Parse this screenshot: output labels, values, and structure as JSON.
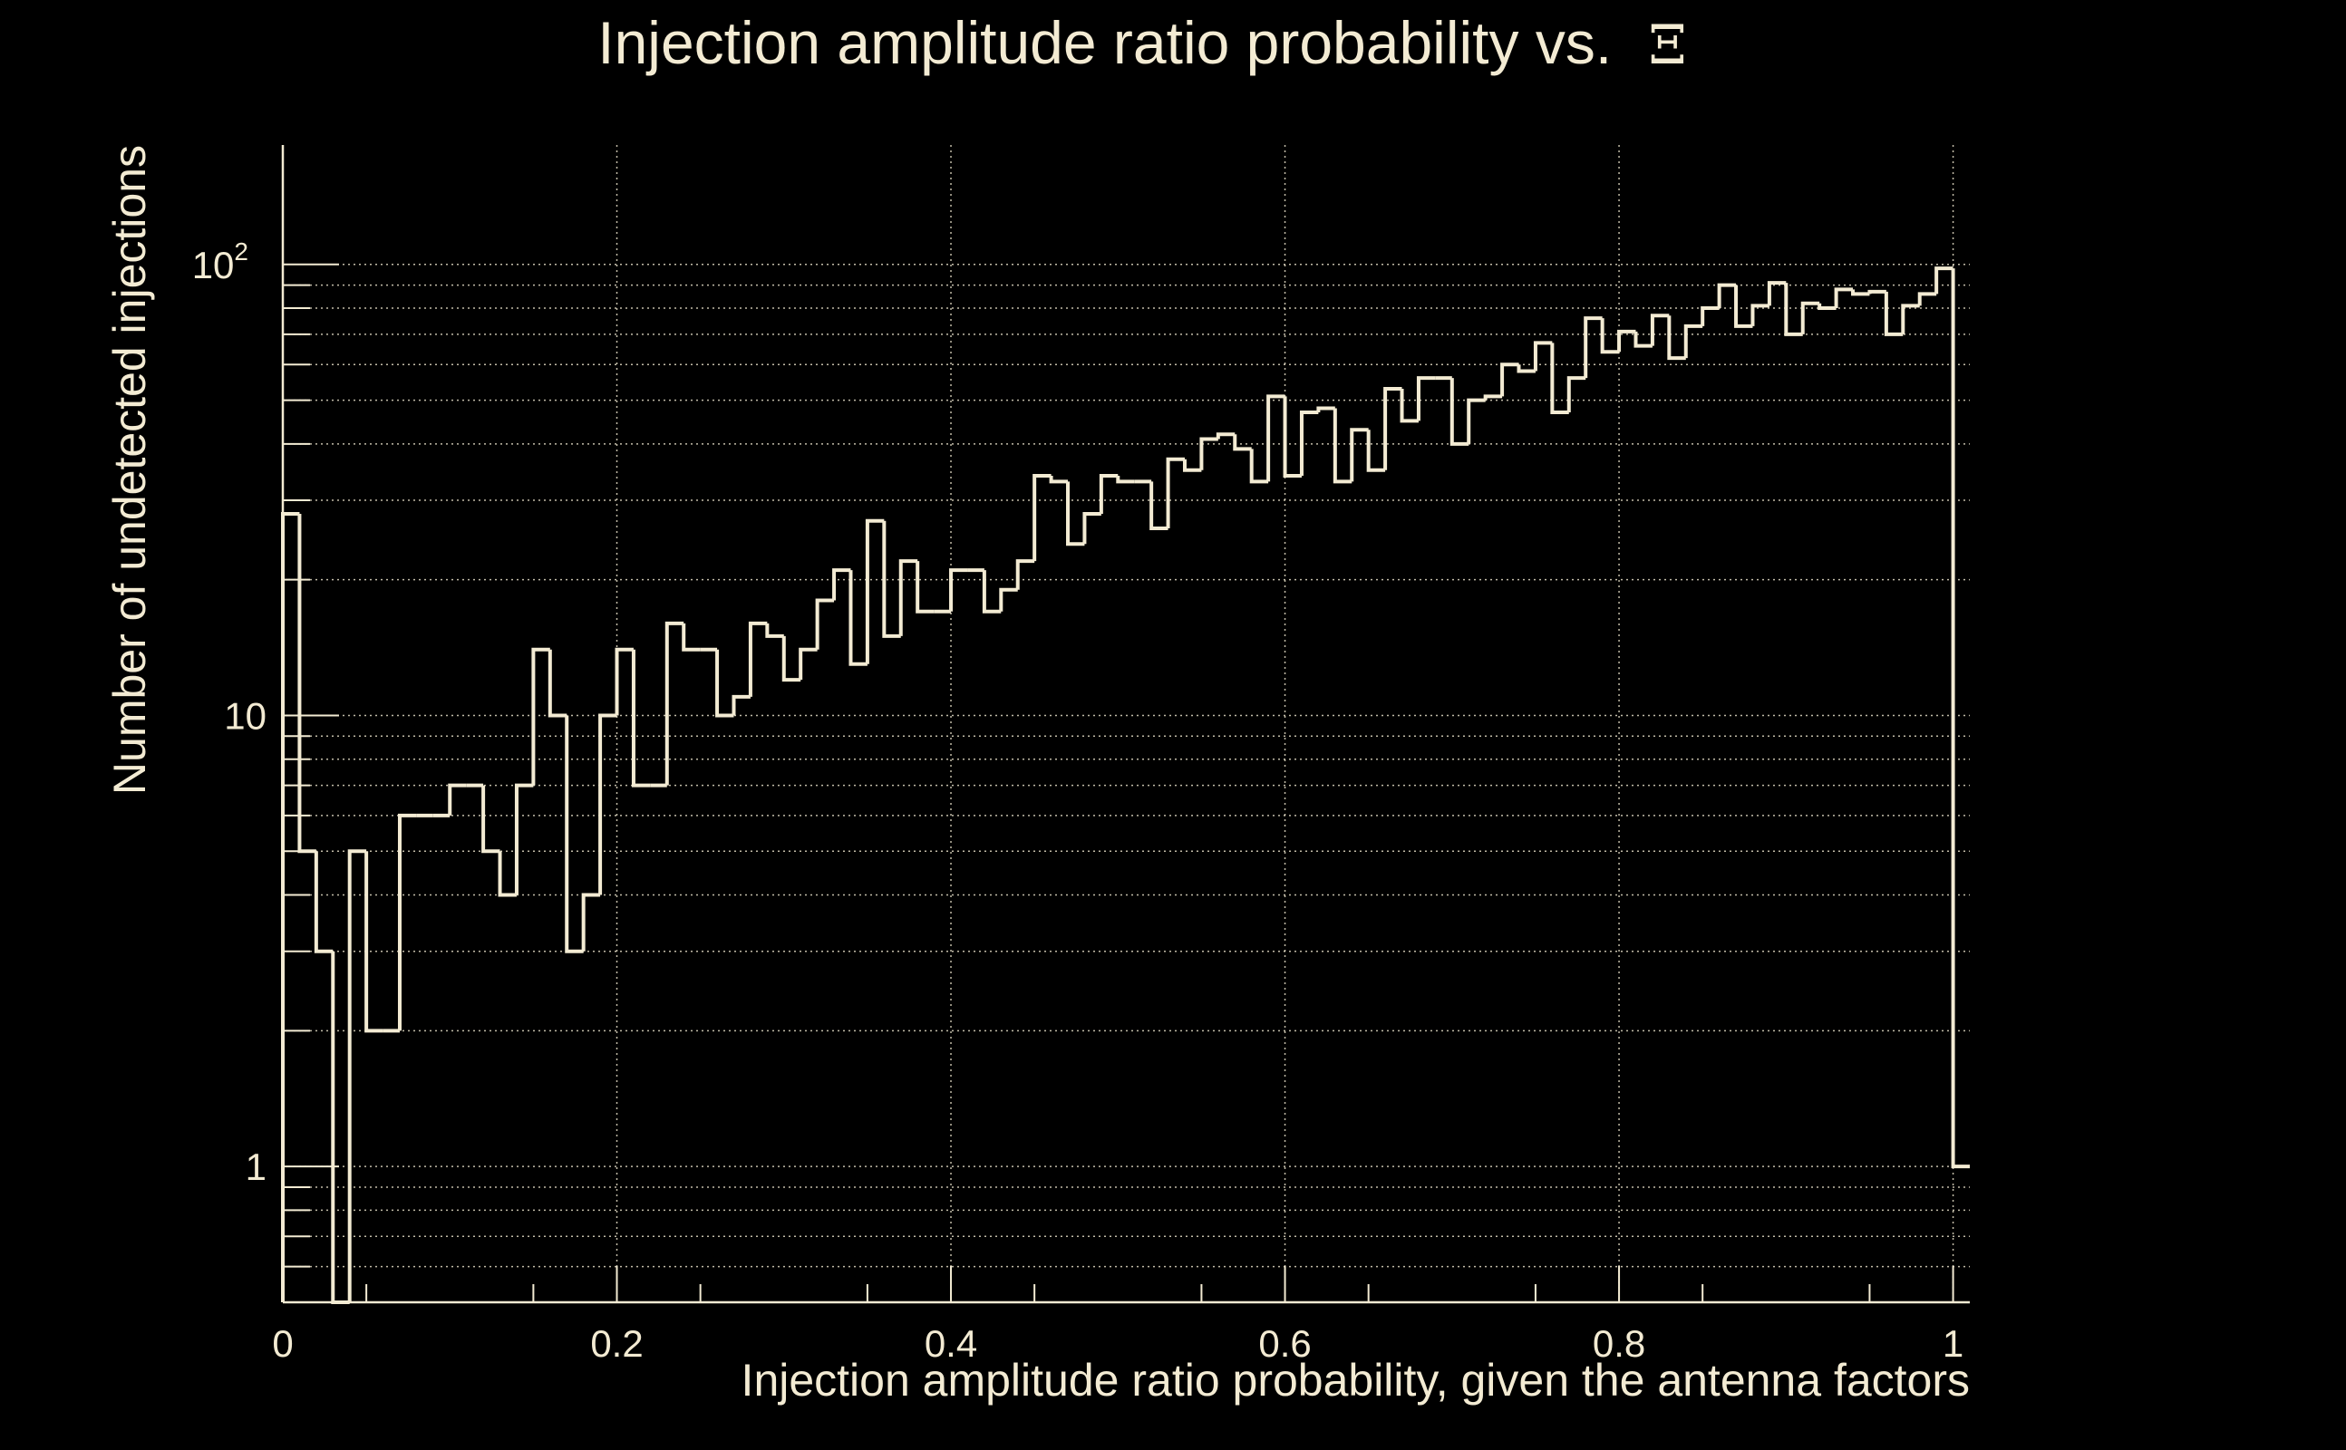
{
  "chart_data": {
    "type": "bar",
    "histogram": true,
    "title": "Injection amplitude ratio probability vs.",
    "title_symbol": "Ξ",
    "xlabel": "Injection amplitude ratio probability, given the antenna factors",
    "ylabel": "Number of undetected injections",
    "xlim": [
      0,
      1.01
    ],
    "ylim": [
      0.5,
      184
    ],
    "yscale": "log",
    "grid": true,
    "bin_width": 0.01,
    "x_ticks": [
      {
        "value": 0,
        "label": "0"
      },
      {
        "value": 0.2,
        "label": "0.2"
      },
      {
        "value": 0.4,
        "label": "0.4"
      },
      {
        "value": 0.6,
        "label": "0.6"
      },
      {
        "value": 0.8,
        "label": "0.8"
      },
      {
        "value": 1,
        "label": "1"
      }
    ],
    "y_ticks": [
      {
        "value": 1,
        "label": "1"
      },
      {
        "value": 10,
        "label": "10"
      },
      {
        "value": 100,
        "label": "10",
        "exponent": "2"
      }
    ],
    "values": [
      28,
      5,
      3,
      0,
      5,
      2,
      2,
      6,
      6,
      6,
      7,
      7,
      5,
      4,
      7,
      14,
      10,
      3,
      4,
      10,
      14,
      7,
      7,
      16,
      14,
      14,
      10,
      11,
      16,
      15,
      12,
      14,
      18,
      21,
      13,
      27,
      15,
      22,
      17,
      17,
      21,
      21,
      17,
      19,
      22,
      34,
      33,
      24,
      28,
      34,
      33,
      33,
      26,
      37,
      35,
      41,
      42,
      39,
      33,
      51,
      34,
      47,
      48,
      33,
      43,
      35,
      53,
      45,
      56,
      56,
      40,
      50,
      51,
      60,
      58,
      67,
      47,
      56,
      76,
      64,
      71,
      66,
      77,
      62,
      73,
      80,
      90,
      73,
      81,
      91,
      70,
      82,
      80,
      88,
      86,
      87,
      70,
      81,
      86,
      98,
      1
    ],
    "colors": {
      "foreground": "#f3ebd3",
      "background": "#000000"
    }
  }
}
